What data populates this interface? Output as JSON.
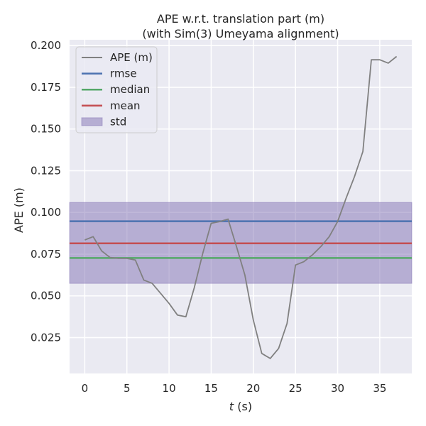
{
  "chart_data": {
    "type": "line",
    "title": "APE w.r.t. translation part (m)",
    "subtitle": "(with Sim(3) Umeyama alignment)",
    "xlabel_italic": "t",
    "xlabel_rest": " (s)",
    "ylabel": "APE (m)",
    "xlim": [
      -1.8,
      38.8
    ],
    "ylim": [
      0.0035,
      0.2035
    ],
    "xticks": [
      0,
      5,
      10,
      15,
      20,
      25,
      30,
      35
    ],
    "xtick_labels": [
      "0",
      "5",
      "10",
      "15",
      "20",
      "25",
      "30",
      "35"
    ],
    "yticks": [
      0.025,
      0.05,
      0.075,
      0.1,
      0.125,
      0.15,
      0.175,
      0.2
    ],
    "ytick_labels": [
      "0.025",
      "0.050",
      "0.075",
      "0.100",
      "0.125",
      "0.150",
      "0.175",
      "0.200"
    ],
    "grid": true,
    "legend_position": "top-left",
    "series": [
      {
        "name": "APE (m)",
        "color": "#808080",
        "x": [
          0,
          1,
          2,
          3,
          4,
          5,
          6,
          7,
          8,
          9,
          10,
          11,
          12,
          13,
          14,
          15,
          16,
          17,
          18,
          19,
          20,
          21,
          22,
          23,
          24,
          25,
          26,
          27,
          28,
          29,
          30,
          31,
          32,
          33,
          34,
          35,
          36,
          37
        ],
        "y": [
          0.0835,
          0.0855,
          0.077,
          0.073,
          0.0725,
          0.0725,
          0.0715,
          0.0595,
          0.0575,
          0.0515,
          0.0455,
          0.0385,
          0.0375,
          0.055,
          0.0755,
          0.0935,
          0.0945,
          0.096,
          0.0795,
          0.0625,
          0.0355,
          0.0155,
          0.0125,
          0.0185,
          0.0335,
          0.0685,
          0.0705,
          0.0745,
          0.0795,
          0.0855,
          0.0945,
          0.1085,
          0.1215,
          0.1365,
          0.1915,
          0.1915,
          0.1895,
          0.1935
        ]
      }
    ],
    "stats": [
      {
        "name": "rmse",
        "value": 0.0947,
        "color": "#4c72b0"
      },
      {
        "name": "median",
        "value": 0.0727,
        "color": "#55a868"
      },
      {
        "name": "mean",
        "value": 0.0815,
        "color": "#c44e52"
      }
    ],
    "std_band": {
      "name": "std",
      "lower": 0.0575,
      "upper": 0.106,
      "color": "#8172b3"
    },
    "colors": {
      "plot_background": "#eaeaf2",
      "grid": "#ffffff",
      "text": "#262626"
    }
  }
}
